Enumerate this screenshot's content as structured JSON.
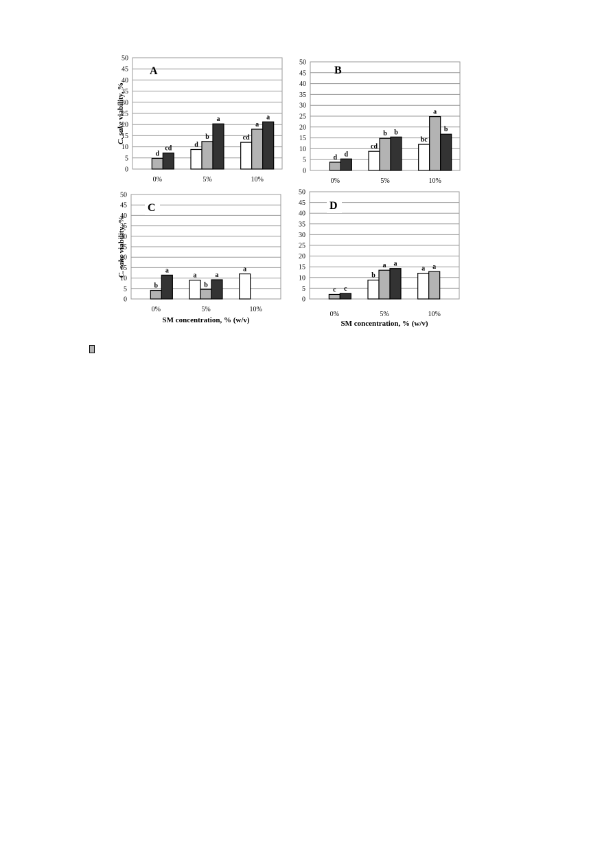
{
  "colors": {
    "series": [
      "#ffffff",
      "#b3b3b3",
      "#333333"
    ],
    "edge": "#000000",
    "grid": "#999999"
  },
  "chart_data": [
    {
      "type": "bar",
      "panel_label": "A",
      "categories": [
        "0%",
        "5%",
        "10%"
      ],
      "ylabel_italic": "C. sake",
      "ylabel_rest": " viability, %",
      "xlabel": "",
      "ylim": [
        0,
        50
      ],
      "yticks": [
        0,
        5,
        10,
        15,
        20,
        25,
        30,
        35,
        40,
        45,
        50
      ],
      "grid": true,
      "series": [
        {
          "values": [
            0,
            8.8,
            12.0
          ],
          "letters": [
            "",
            "d",
            "cd"
          ]
        },
        {
          "values": [
            4.8,
            12.4,
            17.9
          ],
          "letters": [
            "d",
            "b",
            "a"
          ]
        },
        {
          "values": [
            7.2,
            20.3,
            21.2
          ],
          "letters": [
            "cd",
            "a",
            "a"
          ]
        }
      ]
    },
    {
      "type": "bar",
      "panel_label": "B",
      "categories": [
        "0%",
        "5%",
        "10%"
      ],
      "ylabel_italic": "",
      "ylabel_rest": "",
      "xlabel": "",
      "ylim": [
        0,
        50
      ],
      "yticks": [
        0,
        5,
        10,
        15,
        20,
        25,
        30,
        35,
        40,
        45,
        50
      ],
      "grid": true,
      "series": [
        {
          "values": [
            0,
            8.8,
            12.0
          ],
          "letters": [
            "",
            "cd",
            "bc"
          ]
        },
        {
          "values": [
            3.8,
            14.8,
            24.8
          ],
          "letters": [
            "d",
            "b",
            "a"
          ]
        },
        {
          "values": [
            5.3,
            15.4,
            16.7
          ],
          "letters": [
            "d",
            "b",
            "b"
          ]
        }
      ]
    },
    {
      "type": "bar",
      "panel_label": "C",
      "categories": [
        "0%",
        "5%",
        "10%"
      ],
      "ylabel_italic": "C. sake",
      "ylabel_rest": " viability, %",
      "xlabel": "SM concentration, % (w/v)",
      "ylim": [
        0,
        50
      ],
      "yticks": [
        0,
        5,
        10,
        15,
        20,
        25,
        30,
        35,
        40,
        45,
        50
      ],
      "grid": true,
      "series": [
        {
          "values": [
            0,
            9.0,
            12.0
          ],
          "letters": [
            "",
            "a",
            "a"
          ]
        },
        {
          "values": [
            4.1,
            4.5,
            0
          ],
          "letters": [
            "b",
            "b",
            ""
          ]
        },
        {
          "values": [
            11.4,
            9.2,
            0
          ],
          "letters": [
            "a",
            "a",
            ""
          ]
        }
      ]
    },
    {
      "type": "bar",
      "panel_label": "D",
      "categories": [
        "0%",
        "5%",
        "10%"
      ],
      "ylabel_italic": "",
      "ylabel_rest": "",
      "xlabel": "SM concentration, % (w/v)",
      "ylim": [
        0,
        50
      ],
      "yticks": [
        0,
        5,
        10,
        15,
        20,
        25,
        30,
        35,
        40,
        45,
        50
      ],
      "grid": true,
      "series": [
        {
          "values": [
            0,
            8.8,
            12.0
          ],
          "letters": [
            "",
            "b",
            "a"
          ]
        },
        {
          "values": [
            2.1,
            13.4,
            12.8
          ],
          "letters": [
            "c",
            "a",
            "a"
          ]
        },
        {
          "values": [
            2.6,
            14.2,
            0
          ],
          "letters": [
            "c",
            "a",
            ""
          ]
        }
      ]
    }
  ]
}
